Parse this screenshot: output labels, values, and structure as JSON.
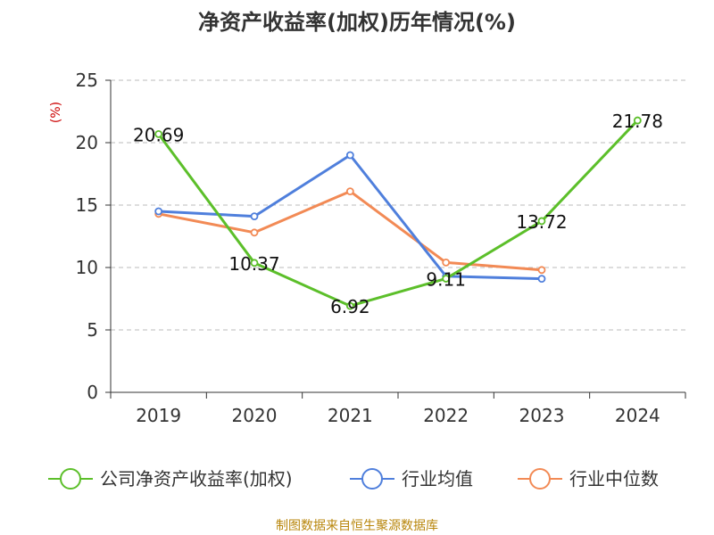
{
  "chart_data": {
    "type": "line",
    "title": "净资产收益率(加权)历年情况(%)",
    "ylabel": "(%)",
    "xlabel": "",
    "categories": [
      "2019",
      "2020",
      "2021",
      "2022",
      "2023",
      "2024"
    ],
    "ylim": [
      0,
      25
    ],
    "yticks": [
      0,
      5,
      10,
      15,
      20,
      25
    ],
    "grid": true,
    "legend_position": "bottom",
    "series": [
      {
        "name": "公司净资产收益率(加权)",
        "color": "#5cbf2a",
        "values": [
          20.69,
          10.37,
          6.92,
          9.11,
          13.72,
          21.78
        ],
        "labels": [
          "20.69",
          "10.37",
          "6.92",
          "9.11",
          "13.72",
          "21.78"
        ]
      },
      {
        "name": "行业均值",
        "color": "#4f7fdc",
        "values": [
          14.5,
          14.1,
          19.0,
          9.3,
          9.1,
          null
        ]
      },
      {
        "name": "行业中位数",
        "color": "#f28a55",
        "values": [
          14.3,
          12.8,
          16.1,
          10.4,
          9.8,
          null
        ]
      }
    ],
    "source": "制图数据来自恒生聚源数据库"
  }
}
